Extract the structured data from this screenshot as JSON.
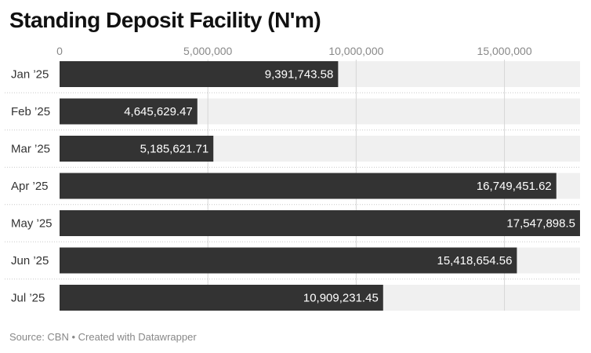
{
  "chart_data": {
    "type": "bar",
    "orientation": "horizontal",
    "title": "Standing Deposit Facility (N'm)",
    "categories": [
      "Jan ’25",
      "Feb ’25",
      "Mar ’25",
      "Apr ’25",
      "May ’25",
      "Jun ’25",
      "Jul ’25"
    ],
    "values": [
      9391743.58,
      4645629.47,
      5185621.71,
      16749451.62,
      17547898.5,
      15418654.56,
      10909231.45
    ],
    "value_labels": [
      "9,391,743.58",
      "4,645,629.47",
      "5,185,621.71",
      "16,749,451.62",
      "17,547,898.5",
      "15,418,654.56",
      "10,909,231.45"
    ],
    "xlim": [
      0,
      17547898.5
    ],
    "x_ticks": [
      0,
      5000000,
      10000000,
      15000000
    ],
    "x_tick_labels": [
      "0",
      "5,000,000",
      "10,000,000",
      "15,000,000"
    ],
    "xlabel": "",
    "ylabel": "",
    "grid": true,
    "colors": {
      "bar": "#333333",
      "track": "#f0f0f0",
      "grid": "#d6d6d6",
      "separator": "#c8c8c8",
      "label_inside": "#ffffff",
      "text": "#333333",
      "tick": "#888888"
    }
  },
  "footer": {
    "source": "Source: CBN • Created with Datawrapper"
  }
}
